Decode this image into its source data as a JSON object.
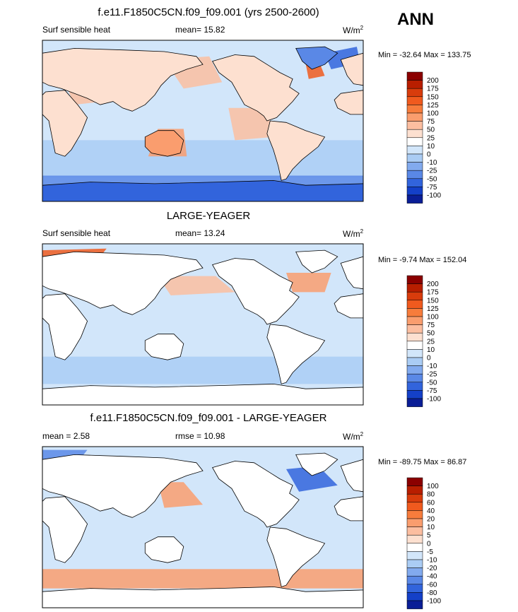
{
  "season": "ANN",
  "chart_data": [
    {
      "type": "heatmap",
      "title": "f.e11.F1850C5CN.f09_f09.001 (yrs 2500-2600)",
      "left_label": "Surf sensible heat",
      "center_label": "mean=  15.82",
      "unit_base": "W/m",
      "unit_exp": "2",
      "minmax": "Min = -32.64 Max = 133.75",
      "min": -32.64,
      "max": 133.75,
      "mean": 15.82,
      "colorbar_levels": [
        "200",
        "175",
        "150",
        "125",
        "100",
        "75",
        "50",
        "25",
        "10",
        "0",
        "-10",
        "-25",
        "-50",
        "-75",
        "-100"
      ],
      "colorbar_colors": [
        "#8b0000",
        "#b81e00",
        "#d83c0c",
        "#f05a1e",
        "#f77c3c",
        "#fa9d6e",
        "#fcbea0",
        "#fde0d0",
        "#ffffff",
        "#d2e6fa",
        "#aaccf4",
        "#82aaee",
        "#5a88e6",
        "#3264dc",
        "#1440c8",
        "#0a1e96"
      ]
    },
    {
      "type": "heatmap",
      "title": "LARGE-YEAGER",
      "left_label": "Surf sensible heat",
      "center_label": "mean=  13.24",
      "unit_base": "W/m",
      "unit_exp": "2",
      "minmax": "Min =  -9.74 Max = 152.04",
      "min": -9.74,
      "max": 152.04,
      "mean": 13.24,
      "colorbar_levels": [
        "200",
        "175",
        "150",
        "125",
        "100",
        "75",
        "50",
        "25",
        "10",
        "0",
        "-10",
        "-25",
        "-50",
        "-75",
        "-100"
      ],
      "colorbar_colors": [
        "#8b0000",
        "#b81e00",
        "#d83c0c",
        "#f05a1e",
        "#f77c3c",
        "#fa9d6e",
        "#fcbea0",
        "#fde0d0",
        "#ffffff",
        "#d2e6fa",
        "#aaccf4",
        "#82aaee",
        "#5a88e6",
        "#3264dc",
        "#1440c8",
        "#0a1e96"
      ]
    },
    {
      "type": "heatmap",
      "title": "f.e11.F1850C5CN.f09_f09.001 - LARGE-YEAGER",
      "left_label": "mean =   2.58",
      "center_label": "rmse =  10.98",
      "unit_base": "W/m",
      "unit_exp": "2",
      "minmax": "Min = -89.75 Max =  86.87",
      "min": -89.75,
      "max": 86.87,
      "mean": 2.58,
      "rmse": 10.98,
      "colorbar_levels": [
        "100",
        "80",
        "60",
        "40",
        "20",
        "10",
        "5",
        "0",
        "-5",
        "-10",
        "-20",
        "-40",
        "-60",
        "-80",
        "-100"
      ],
      "colorbar_colors": [
        "#8b0000",
        "#b81e00",
        "#d83c0c",
        "#f05a1e",
        "#f77c3c",
        "#fa9d6e",
        "#fcbea0",
        "#fde0d0",
        "#ffffff",
        "#d2e6fa",
        "#aaccf4",
        "#82aaee",
        "#5a88e6",
        "#3264dc",
        "#1440c8",
        "#0a1e96"
      ]
    }
  ]
}
